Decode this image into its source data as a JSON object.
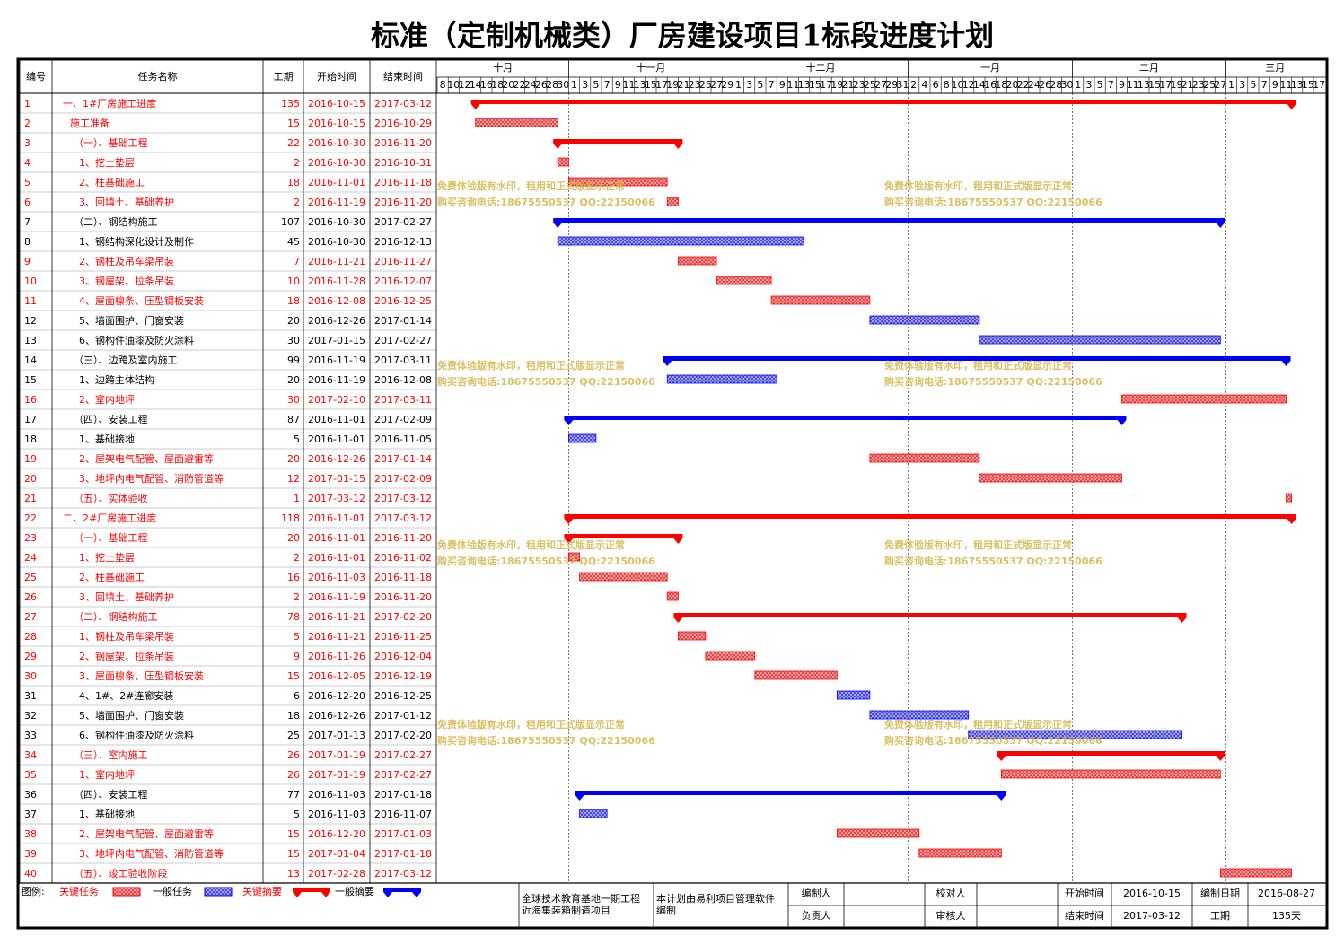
{
  "title": "标准（定制机械类）厂房建设项目1标段进度计划",
  "header": {
    "id": "编号",
    "name": "任务名称",
    "duration": "工期",
    "start": "开始时间",
    "end": "结束时间"
  },
  "critical_color": "#ff0000",
  "normal_color": "#0000ff",
  "timeline": {
    "months": [
      {
        "label": "十月",
        "days": [
          8,
          10,
          12,
          14,
          16,
          18,
          20,
          22,
          24,
          26,
          28,
          30
        ]
      },
      {
        "label": "十一月",
        "days": [
          1,
          3,
          5,
          7,
          9,
          11,
          13,
          15,
          17,
          19,
          21,
          23,
          25,
          27,
          29
        ]
      },
      {
        "label": "十二月",
        "days": [
          1,
          3,
          5,
          7,
          9,
          11,
          13,
          15,
          17,
          19,
          21,
          23,
          25,
          27,
          29,
          31
        ]
      },
      {
        "label": "一月",
        "days": [
          2,
          4,
          6,
          8,
          10,
          12,
          14,
          16,
          18,
          20,
          22,
          24,
          26,
          28,
          30
        ]
      },
      {
        "label": "二月",
        "days": [
          1,
          3,
          5,
          7,
          9,
          11,
          13,
          15,
          17,
          19,
          21,
          23,
          25,
          27
        ]
      },
      {
        "label": "三月",
        "days": [
          1,
          3,
          5,
          7,
          9,
          11,
          13,
          15,
          17
        ]
      }
    ]
  },
  "rows": [
    {
      "id": 1,
      "name": "一、1#厂房施工进度",
      "duration": 135,
      "start": "2016-10-15",
      "end": "2017-03-12",
      "critical": true,
      "summary": true
    },
    {
      "id": 2,
      "name": "施工准备",
      "duration": 15,
      "start": "2016-10-15",
      "end": "2016-10-29",
      "critical": true,
      "summary": false
    },
    {
      "id": 3,
      "name": "（一）、基础工程",
      "duration": 22,
      "start": "2016-10-30",
      "end": "2016-11-20",
      "critical": true,
      "summary": true
    },
    {
      "id": 4,
      "name": "1、挖土垫层",
      "duration": 2,
      "start": "2016-10-30",
      "end": "2016-10-31",
      "critical": true,
      "summary": false
    },
    {
      "id": 5,
      "name": "2、柱基础施工",
      "duration": 18,
      "start": "2016-11-01",
      "end": "2016-11-18",
      "critical": true,
      "summary": false
    },
    {
      "id": 6,
      "name": "3、回填土、基础养护",
      "duration": 2,
      "start": "2016-11-19",
      "end": "2016-11-20",
      "critical": true,
      "summary": false
    },
    {
      "id": 7,
      "name": "（二）、钢结构施工",
      "duration": 107,
      "start": "2016-10-30",
      "end": "2017-02-27",
      "critical": false,
      "summary": true
    },
    {
      "id": 8,
      "name": "1、钢结构深化设计及制作",
      "duration": 45,
      "start": "2016-10-30",
      "end": "2016-12-13",
      "critical": false,
      "summary": false
    },
    {
      "id": 9,
      "name": "2、钢柱及吊车梁吊装",
      "duration": 7,
      "start": "2016-11-21",
      "end": "2016-11-27",
      "critical": true,
      "summary": false
    },
    {
      "id": 10,
      "name": "3、钢屋架、拉条吊装",
      "duration": 10,
      "start": "2016-11-28",
      "end": "2016-12-07",
      "critical": true,
      "summary": false
    },
    {
      "id": 11,
      "name": "4、屋面檩条、压型钢板安装",
      "duration": 18,
      "start": "2016-12-08",
      "end": "2016-12-25",
      "critical": true,
      "summary": false
    },
    {
      "id": 12,
      "name": "5、墙面围护、门窗安装",
      "duration": 20,
      "start": "2016-12-26",
      "end": "2017-01-14",
      "critical": false,
      "summary": false
    },
    {
      "id": 13,
      "name": "6、钢构件油漆及防火涂料",
      "duration": 30,
      "start": "2017-01-15",
      "end": "2017-02-27",
      "critical": false,
      "summary": false
    },
    {
      "id": 14,
      "name": "（三）、边跨及室内施工",
      "duration": 99,
      "start": "2016-11-19",
      "end": "2017-03-11",
      "critical": false,
      "summary": true
    },
    {
      "id": 15,
      "name": "1、边跨主体结构",
      "duration": 20,
      "start": "2016-11-19",
      "end": "2016-12-08",
      "critical": false,
      "summary": false
    },
    {
      "id": 16,
      "name": "2、室内地坪",
      "duration": 30,
      "start": "2017-02-10",
      "end": "2017-03-11",
      "critical": true,
      "summary": false
    },
    {
      "id": 17,
      "name": "（四）、安装工程",
      "duration": 87,
      "start": "2016-11-01",
      "end": "2017-02-09",
      "critical": false,
      "summary": true
    },
    {
      "id": 18,
      "name": "1、基础接地",
      "duration": 5,
      "start": "2016-11-01",
      "end": "2016-11-05",
      "critical": false,
      "summary": false
    },
    {
      "id": 19,
      "name": "2、屋架电气配管、屋面避雷等",
      "duration": 20,
      "start": "2016-12-26",
      "end": "2017-01-14",
      "critical": true,
      "summary": false
    },
    {
      "id": 20,
      "name": "3、地坪内电气配管、消防管道等",
      "duration": 12,
      "start": "2017-01-15",
      "end": "2017-02-09",
      "critical": true,
      "summary": false
    },
    {
      "id": 21,
      "name": "（五）、实体验收",
      "duration": 1,
      "start": "2017-03-12",
      "end": "2017-03-12",
      "critical": true,
      "summary": false
    },
    {
      "id": 22,
      "name": "二、2#厂房施工进度",
      "duration": 118,
      "start": "2016-11-01",
      "end": "2017-03-12",
      "critical": true,
      "summary": true
    },
    {
      "id": 23,
      "name": "（一）、基础工程",
      "duration": 20,
      "start": "2016-11-01",
      "end": "2016-11-20",
      "critical": true,
      "summary": true
    },
    {
      "id": 24,
      "name": "1、挖土垫层",
      "duration": 2,
      "start": "2016-11-01",
      "end": "2016-11-02",
      "critical": true,
      "summary": false
    },
    {
      "id": 25,
      "name": "2、柱基础施工",
      "duration": 16,
      "start": "2016-11-03",
      "end": "2016-11-18",
      "critical": true,
      "summary": false
    },
    {
      "id": 26,
      "name": "3、回填土、基础养护",
      "duration": 2,
      "start": "2016-11-19",
      "end": "2016-11-20",
      "critical": true,
      "summary": false
    },
    {
      "id": 27,
      "name": "（二）、钢结构施工",
      "duration": 78,
      "start": "2016-11-21",
      "end": "2017-02-20",
      "critical": true,
      "summary": true
    },
    {
      "id": 28,
      "name": "1、钢柱及吊车梁吊装",
      "duration": 5,
      "start": "2016-11-21",
      "end": "2016-11-25",
      "critical": true,
      "summary": false
    },
    {
      "id": 29,
      "name": "2、钢屋架、拉条吊装",
      "duration": 9,
      "start": "2016-11-26",
      "end": "2016-12-04",
      "critical": true,
      "summary": false
    },
    {
      "id": 30,
      "name": "3、屋面檩条、压型钢板安装",
      "duration": 15,
      "start": "2016-12-05",
      "end": "2016-12-19",
      "critical": true,
      "summary": false
    },
    {
      "id": 31,
      "name": "4、1#、2#连廊安装",
      "duration": 6,
      "start": "2016-12-20",
      "end": "2016-12-25",
      "critical": false,
      "summary": false
    },
    {
      "id": 32,
      "name": "5、墙面围护、门窗安装",
      "duration": 18,
      "start": "2016-12-26",
      "end": "2017-01-12",
      "critical": false,
      "summary": false
    },
    {
      "id": 33,
      "name": "6、钢构件油漆及防火涂料",
      "duration": 25,
      "start": "2017-01-13",
      "end": "2017-02-20",
      "critical": false,
      "summary": false
    },
    {
      "id": 34,
      "name": "（三）、室内施工",
      "duration": 26,
      "start": "2017-01-19",
      "end": "2017-02-27",
      "critical": true,
      "summary": true
    },
    {
      "id": 35,
      "name": "1、室内地坪",
      "duration": 26,
      "start": "2017-01-19",
      "end": "2017-02-27",
      "critical": true,
      "summary": false
    },
    {
      "id": 36,
      "name": "（四）、安装工程",
      "duration": 77,
      "start": "2016-11-03",
      "end": "2017-01-18",
      "critical": false,
      "summary": true
    },
    {
      "id": 37,
      "name": "1、基础接地",
      "duration": 5,
      "start": "2016-11-03",
      "end": "2016-11-07",
      "critical": false,
      "summary": false
    },
    {
      "id": 38,
      "name": "2、屋架电气配管、屋面避雷等",
      "duration": 15,
      "start": "2016-12-20",
      "end": "2017-01-03",
      "critical": true,
      "summary": false
    },
    {
      "id": 39,
      "name": "3、地坪内电气配管、消防管道等",
      "duration": 15,
      "start": "2017-01-04",
      "end": "2017-01-18",
      "critical": true,
      "summary": false
    },
    {
      "id": 40,
      "name": "（五）、竣工验收阶段",
      "duration": 13,
      "start": "2017-02-28",
      "end": "2017-03-12",
      "critical": true,
      "summary": false
    }
  ],
  "watermark": [
    "免费体验版有水印，租用和正式版显示正常",
    "购买咨询电话:18675550537 QQ:22150066"
  ],
  "legend_title": "图例:",
  "legend": [
    "关键任务",
    "一般任务",
    "关键摘要",
    "一般摘要"
  ],
  "project": [
    "全球技术教育基地一期工程",
    "近海集装箱制造项目"
  ],
  "software": [
    "本计划由易利项目管理软件",
    "编制"
  ],
  "signatures": [
    "编制人",
    "负责人",
    "校对人",
    "审核人"
  ],
  "info": [
    {
      "label": "开始时间",
      "value": "2016-10-15"
    },
    {
      "label": "结束时间",
      "value": "2017-03-12"
    },
    {
      "label": "编制日期",
      "value": "2016-08-27"
    },
    {
      "label": "工期",
      "value": "135天"
    }
  ]
}
